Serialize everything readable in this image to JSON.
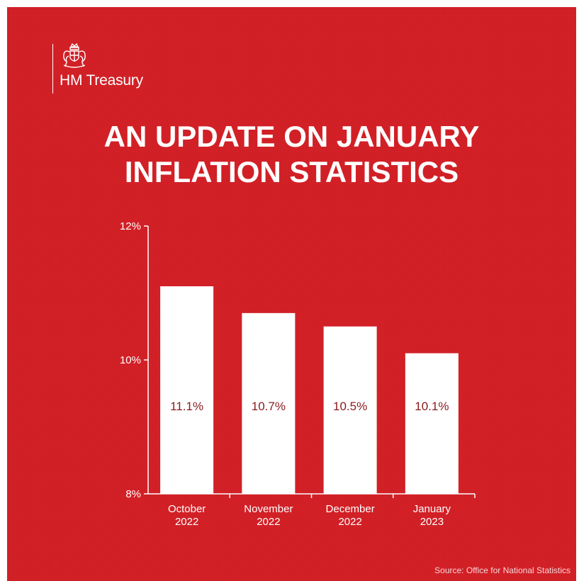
{
  "brand": {
    "name": "HM Treasury",
    "logo": "royal-crest-icon"
  },
  "title_lines": [
    "AN UPDATE ON JANUARY",
    "INFLATION STATISTICS"
  ],
  "source": "Source: Office for National Statistics",
  "colors": {
    "background": "#d42027",
    "bar": "#ffffff",
    "bar_label": "#8a1a1e",
    "text": "#ffffff"
  },
  "chart_data": {
    "type": "bar",
    "categories": [
      [
        "October",
        "2022"
      ],
      [
        "November",
        "2022"
      ],
      [
        "December",
        "2022"
      ],
      [
        "January",
        "2023"
      ]
    ],
    "values": [
      11.1,
      10.7,
      10.5,
      10.1
    ],
    "value_labels": [
      "11.1%",
      "10.7%",
      "10.5%",
      "10.1%"
    ],
    "yticks": [
      8,
      10,
      12
    ],
    "ytick_labels": [
      "8%",
      "10%",
      "12%"
    ],
    "ylim": [
      8,
      12
    ],
    "grid": false
  }
}
